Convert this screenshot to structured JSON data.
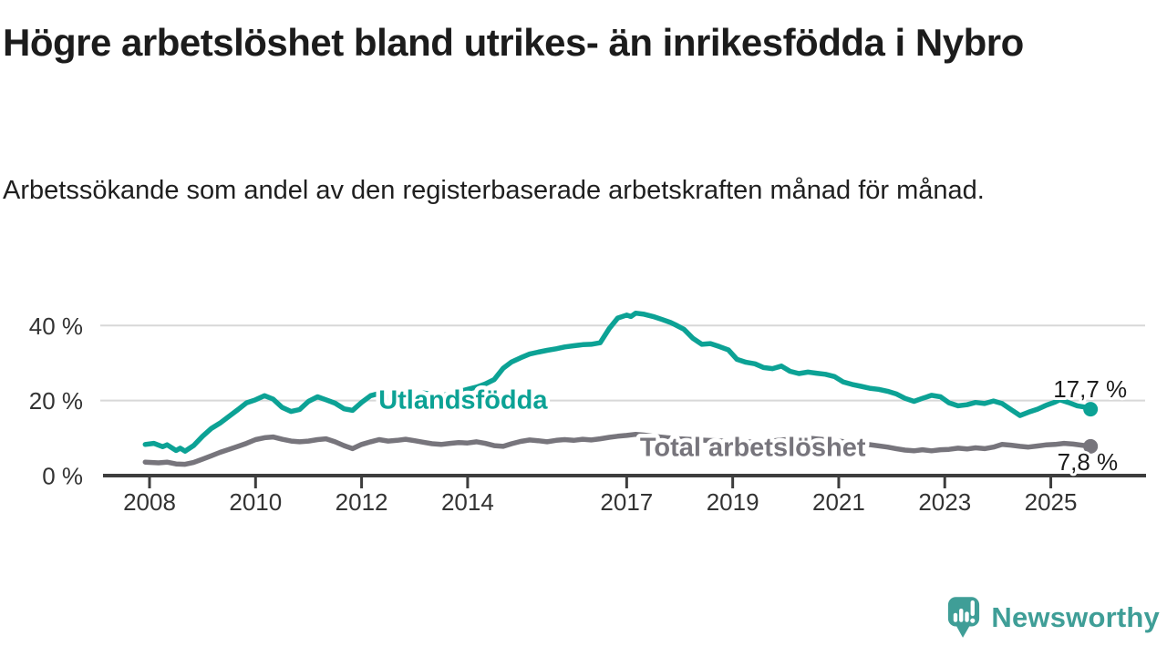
{
  "header": {
    "title": "Högre arbetslöshet bland utrikes- än inrikesfödda i Nybro",
    "subtitle": "Arbetssökande som andel av den registerbaserade arbetskraften månad för månad."
  },
  "footer": {
    "brand": "Newsworthy",
    "brand_color": "#3f9e97"
  },
  "chart_data": {
    "type": "line",
    "title": "Högre arbetslöshet bland utrikes- än inrikesfödda i Nybro",
    "xlabel": "",
    "ylabel": "",
    "ylim": [
      0,
      44
    ],
    "xlim": [
      2007.1,
      2026.8
    ],
    "grid": "horizontal",
    "y_ticks": [
      {
        "value": 0,
        "label": "0 %"
      },
      {
        "value": 20,
        "label": "20 %"
      },
      {
        "value": 40,
        "label": "40 %"
      }
    ],
    "x_ticks": [
      {
        "value": 2008,
        "label": "2008"
      },
      {
        "value": 2010,
        "label": "2010"
      },
      {
        "value": 2012,
        "label": "2012"
      },
      {
        "value": 2014,
        "label": "2014"
      },
      {
        "value": 2017,
        "label": "2017"
      },
      {
        "value": 2019,
        "label": "2019"
      },
      {
        "value": 2021,
        "label": "2021"
      },
      {
        "value": 2023,
        "label": "2023"
      },
      {
        "value": 2025,
        "label": "2025"
      }
    ],
    "colors": {
      "utlandsfodda": "#0ca295",
      "total": "#77757c",
      "axis": "#3d3d3d",
      "grid": "#d8d8d8",
      "tick_text": "#333333",
      "end_label_text": "#1c1c1c"
    },
    "series": [
      {
        "name": "Utlandsfödda",
        "color": "#0ca295",
        "end_value": 17.7,
        "end_label": {
          "text": "17,7 %",
          "dx": 40,
          "dy": -13,
          "anchor": "end"
        },
        "inline_label": {
          "text": "Utlandsfödda",
          "year": 2012.32,
          "pct": 17.9,
          "anchor": "start"
        },
        "points": [
          [
            2007.92,
            8.3
          ],
          [
            2008.08,
            8.6
          ],
          [
            2008.25,
            7.7
          ],
          [
            2008.33,
            8.2
          ],
          [
            2008.5,
            6.7
          ],
          [
            2008.58,
            7.3
          ],
          [
            2008.67,
            6.5
          ],
          [
            2008.83,
            8.0
          ],
          [
            2009.0,
            10.5
          ],
          [
            2009.17,
            12.6
          ],
          [
            2009.33,
            14.0
          ],
          [
            2009.5,
            15.8
          ],
          [
            2009.67,
            17.6
          ],
          [
            2009.83,
            19.4
          ],
          [
            2010.0,
            20.2
          ],
          [
            2010.17,
            21.3
          ],
          [
            2010.33,
            20.4
          ],
          [
            2010.5,
            18.2
          ],
          [
            2010.67,
            17.1
          ],
          [
            2010.83,
            17.6
          ],
          [
            2011.0,
            19.8
          ],
          [
            2011.17,
            21.0
          ],
          [
            2011.33,
            20.2
          ],
          [
            2011.5,
            19.3
          ],
          [
            2011.67,
            17.8
          ],
          [
            2011.83,
            17.4
          ],
          [
            2012.0,
            19.5
          ],
          [
            2012.17,
            21.3
          ],
          [
            2012.33,
            21.9
          ],
          [
            2012.5,
            20.8
          ],
          [
            2012.67,
            21.2
          ],
          [
            2012.83,
            21.6
          ],
          [
            2013.0,
            21.4
          ],
          [
            2013.17,
            22.0
          ],
          [
            2013.33,
            21.7
          ],
          [
            2013.5,
            21.3
          ],
          [
            2013.67,
            21.8
          ],
          [
            2013.83,
            22.4
          ],
          [
            2014.0,
            23.0
          ],
          [
            2014.17,
            23.6
          ],
          [
            2014.33,
            24.4
          ],
          [
            2014.5,
            25.6
          ],
          [
            2014.67,
            28.6
          ],
          [
            2014.83,
            30.3
          ],
          [
            2015.0,
            31.4
          ],
          [
            2015.17,
            32.4
          ],
          [
            2015.33,
            32.9
          ],
          [
            2015.5,
            33.4
          ],
          [
            2015.67,
            33.8
          ],
          [
            2015.83,
            34.3
          ],
          [
            2016.0,
            34.6
          ],
          [
            2016.17,
            34.9
          ],
          [
            2016.33,
            35.0
          ],
          [
            2016.5,
            35.4
          ],
          [
            2016.67,
            39.2
          ],
          [
            2016.83,
            42.0
          ],
          [
            2017.0,
            42.8
          ],
          [
            2017.08,
            42.4
          ],
          [
            2017.17,
            43.3
          ],
          [
            2017.33,
            43.0
          ],
          [
            2017.5,
            42.4
          ],
          [
            2017.67,
            41.6
          ],
          [
            2017.83,
            40.8
          ],
          [
            2017.92,
            40.2
          ],
          [
            2018.08,
            39.0
          ],
          [
            2018.25,
            36.6
          ],
          [
            2018.42,
            35.0
          ],
          [
            2018.58,
            35.2
          ],
          [
            2018.75,
            34.4
          ],
          [
            2018.92,
            33.5
          ],
          [
            2019.08,
            31.0
          ],
          [
            2019.25,
            30.2
          ],
          [
            2019.42,
            29.8
          ],
          [
            2019.58,
            28.8
          ],
          [
            2019.75,
            28.5
          ],
          [
            2019.92,
            29.2
          ],
          [
            2020.08,
            27.8
          ],
          [
            2020.25,
            27.2
          ],
          [
            2020.42,
            27.6
          ],
          [
            2020.58,
            27.3
          ],
          [
            2020.75,
            27.0
          ],
          [
            2020.92,
            26.4
          ],
          [
            2021.08,
            25.0
          ],
          [
            2021.25,
            24.3
          ],
          [
            2021.42,
            23.8
          ],
          [
            2021.58,
            23.3
          ],
          [
            2021.75,
            23.0
          ],
          [
            2021.92,
            22.5
          ],
          [
            2022.08,
            21.8
          ],
          [
            2022.25,
            20.6
          ],
          [
            2022.42,
            19.8
          ],
          [
            2022.58,
            20.6
          ],
          [
            2022.75,
            21.4
          ],
          [
            2022.92,
            21.0
          ],
          [
            2023.08,
            19.4
          ],
          [
            2023.25,
            18.6
          ],
          [
            2023.42,
            18.9
          ],
          [
            2023.58,
            19.5
          ],
          [
            2023.75,
            19.2
          ],
          [
            2023.92,
            19.9
          ],
          [
            2024.08,
            19.2
          ],
          [
            2024.25,
            17.6
          ],
          [
            2024.42,
            16.0
          ],
          [
            2024.58,
            16.9
          ],
          [
            2024.75,
            17.7
          ],
          [
            2024.92,
            18.8
          ],
          [
            2025.08,
            19.6
          ],
          [
            2025.17,
            20.2
          ],
          [
            2025.33,
            19.5
          ],
          [
            2025.5,
            18.6
          ],
          [
            2025.67,
            18.2
          ],
          [
            2025.75,
            17.7
          ]
        ]
      },
      {
        "name": "Total arbetslöshet",
        "color": "#77757c",
        "end_value": 7.8,
        "end_label": {
          "text": "7,8 %",
          "dx": 30,
          "dy": 26,
          "anchor": "end"
        },
        "inline_label": {
          "text": "Total arbetslöshet",
          "year": 2017.25,
          "pct": 5.2,
          "anchor": "start"
        },
        "points": [
          [
            2007.92,
            3.6
          ],
          [
            2008.17,
            3.4
          ],
          [
            2008.33,
            3.6
          ],
          [
            2008.5,
            3.1
          ],
          [
            2008.67,
            3.0
          ],
          [
            2008.83,
            3.5
          ],
          [
            2009.0,
            4.4
          ],
          [
            2009.17,
            5.3
          ],
          [
            2009.33,
            6.2
          ],
          [
            2009.5,
            7.0
          ],
          [
            2009.67,
            7.8
          ],
          [
            2009.83,
            8.6
          ],
          [
            2010.0,
            9.6
          ],
          [
            2010.17,
            10.1
          ],
          [
            2010.33,
            10.3
          ],
          [
            2010.5,
            9.7
          ],
          [
            2010.67,
            9.2
          ],
          [
            2010.83,
            9.0
          ],
          [
            2011.0,
            9.2
          ],
          [
            2011.17,
            9.6
          ],
          [
            2011.33,
            9.8
          ],
          [
            2011.5,
            9.0
          ],
          [
            2011.67,
            8.0
          ],
          [
            2011.83,
            7.2
          ],
          [
            2012.0,
            8.3
          ],
          [
            2012.17,
            9.0
          ],
          [
            2012.33,
            9.6
          ],
          [
            2012.5,
            9.2
          ],
          [
            2012.67,
            9.4
          ],
          [
            2012.83,
            9.7
          ],
          [
            2013.0,
            9.3
          ],
          [
            2013.17,
            8.9
          ],
          [
            2013.33,
            8.5
          ],
          [
            2013.5,
            8.3
          ],
          [
            2013.67,
            8.6
          ],
          [
            2013.83,
            8.8
          ],
          [
            2014.0,
            8.7
          ],
          [
            2014.17,
            9.0
          ],
          [
            2014.33,
            8.6
          ],
          [
            2014.5,
            8.0
          ],
          [
            2014.67,
            7.8
          ],
          [
            2014.83,
            8.5
          ],
          [
            2015.0,
            9.1
          ],
          [
            2015.17,
            9.5
          ],
          [
            2015.33,
            9.3
          ],
          [
            2015.5,
            9.0
          ],
          [
            2015.67,
            9.4
          ],
          [
            2015.83,
            9.6
          ],
          [
            2016.0,
            9.4
          ],
          [
            2016.17,
            9.7
          ],
          [
            2016.33,
            9.5
          ],
          [
            2016.5,
            9.8
          ],
          [
            2016.67,
            10.2
          ],
          [
            2016.83,
            10.5
          ],
          [
            2017.0,
            10.7
          ],
          [
            2017.17,
            11.0
          ],
          [
            2017.33,
            10.8
          ],
          [
            2017.5,
            10.5
          ],
          [
            2017.75,
            10.1
          ],
          [
            2018.0,
            9.8
          ],
          [
            2018.5,
            9.4
          ],
          [
            2019.0,
            9.1
          ],
          [
            2019.5,
            8.9
          ],
          [
            2020.0,
            9.6
          ],
          [
            2020.5,
            9.9
          ],
          [
            2021.0,
            9.2
          ],
          [
            2021.5,
            8.4
          ],
          [
            2021.92,
            7.6
          ],
          [
            2022.08,
            7.2
          ],
          [
            2022.25,
            6.8
          ],
          [
            2022.42,
            6.6
          ],
          [
            2022.58,
            6.9
          ],
          [
            2022.75,
            6.6
          ],
          [
            2022.92,
            6.9
          ],
          [
            2023.08,
            7.0
          ],
          [
            2023.25,
            7.3
          ],
          [
            2023.42,
            7.1
          ],
          [
            2023.58,
            7.4
          ],
          [
            2023.75,
            7.2
          ],
          [
            2023.92,
            7.6
          ],
          [
            2024.08,
            8.3
          ],
          [
            2024.25,
            8.1
          ],
          [
            2024.42,
            7.8
          ],
          [
            2024.58,
            7.6
          ],
          [
            2024.75,
            7.9
          ],
          [
            2024.92,
            8.2
          ],
          [
            2025.08,
            8.3
          ],
          [
            2025.25,
            8.6
          ],
          [
            2025.42,
            8.4
          ],
          [
            2025.58,
            8.1
          ],
          [
            2025.75,
            7.8
          ]
        ]
      }
    ]
  }
}
